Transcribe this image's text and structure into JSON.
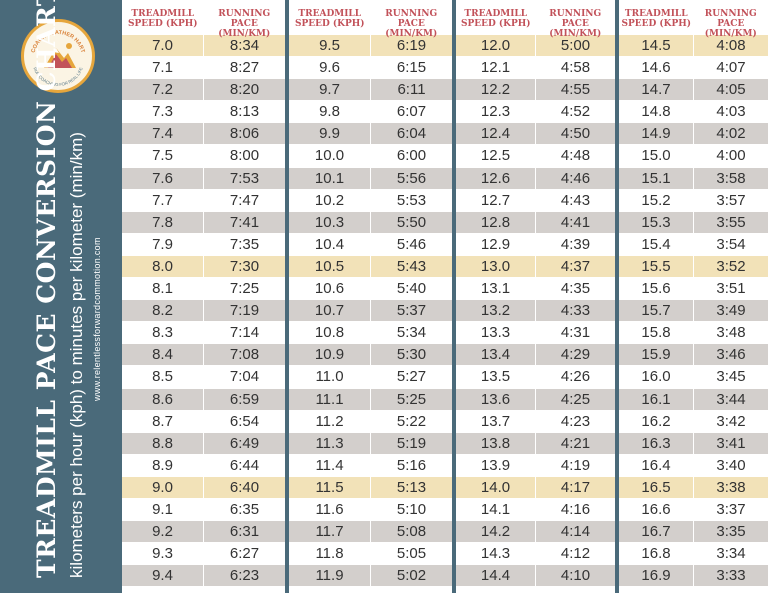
{
  "logo": {
    "top_text": "COACH HEATHER HART",
    "bottom_text": "RUN COACHING FOR REAL LIFE"
  },
  "title": "TREADMILL PACE CONVERSION CHART",
  "subtitle": "kilometers  per hour (kph) to minutes per kilometer  (min/km)",
  "url": "www.relentlessforwardcommotion.com",
  "headers": {
    "speed": [
      "TREADMILL",
      "SPEED (KPH)"
    ],
    "pace": [
      "RUNNING PACE",
      "(MIN/KM)"
    ]
  },
  "colors": {
    "sidebar": "#4a6a7a",
    "header_text": "#c2525a",
    "highlight": "#f2e2b8",
    "shaded": "#d3cfcc",
    "logo_ring": "#e6a63c"
  },
  "tables": [
    {
      "rows": [
        [
          "7.0",
          "8:34"
        ],
        [
          "7.1",
          "8:27"
        ],
        [
          "7.2",
          "8:20"
        ],
        [
          "7.3",
          "8:13"
        ],
        [
          "7.4",
          "8:06"
        ],
        [
          "7.5",
          "8:00"
        ],
        [
          "7.6",
          "7:53"
        ],
        [
          "7.7",
          "7:47"
        ],
        [
          "7.8",
          "7:41"
        ],
        [
          "7.9",
          "7:35"
        ],
        [
          "8.0",
          "7:30"
        ],
        [
          "8.1",
          "7:25"
        ],
        [
          "8.2",
          "7:19"
        ],
        [
          "8.3",
          "7:14"
        ],
        [
          "8.4",
          "7:08"
        ],
        [
          "8.5",
          "7:04"
        ],
        [
          "8.6",
          "6:59"
        ],
        [
          "8.7",
          "6:54"
        ],
        [
          "8.8",
          "6:49"
        ],
        [
          "8.9",
          "6:44"
        ],
        [
          "9.0",
          "6:40"
        ],
        [
          "9.1",
          "6:35"
        ],
        [
          "9.2",
          "6:31"
        ],
        [
          "9.3",
          "6:27"
        ],
        [
          "9.4",
          "6:23"
        ]
      ]
    },
    {
      "rows": [
        [
          "9.5",
          "6:19"
        ],
        [
          "9.6",
          "6:15"
        ],
        [
          "9.7",
          "6:11"
        ],
        [
          "9.8",
          "6:07"
        ],
        [
          "9.9",
          "6:04"
        ],
        [
          "10.0",
          "6:00"
        ],
        [
          "10.1",
          "5:56"
        ],
        [
          "10.2",
          "5:53"
        ],
        [
          "10.3",
          "5:50"
        ],
        [
          "10.4",
          "5:46"
        ],
        [
          "10.5",
          "5:43"
        ],
        [
          "10.6",
          "5:40"
        ],
        [
          "10.7",
          "5:37"
        ],
        [
          "10.8",
          "5:34"
        ],
        [
          "10.9",
          "5:30"
        ],
        [
          "11.0",
          "5:27"
        ],
        [
          "11.1",
          "5:25"
        ],
        [
          "11.2",
          "5:22"
        ],
        [
          "11.3",
          "5:19"
        ],
        [
          "11.4",
          "5:16"
        ],
        [
          "11.5",
          "5:13"
        ],
        [
          "11.6",
          "5:10"
        ],
        [
          "11.7",
          "5:08"
        ],
        [
          "11.8",
          "5:05"
        ],
        [
          "11.9",
          "5:02"
        ]
      ]
    },
    {
      "rows": [
        [
          "12.0",
          "5:00"
        ],
        [
          "12.1",
          "4:58"
        ],
        [
          "12.2",
          "4:55"
        ],
        [
          "12.3",
          "4:52"
        ],
        [
          "12.4",
          "4:50"
        ],
        [
          "12.5",
          "4:48"
        ],
        [
          "12.6",
          "4:46"
        ],
        [
          "12.7",
          "4:43"
        ],
        [
          "12.8",
          "4:41"
        ],
        [
          "12.9",
          "4:39"
        ],
        [
          "13.0",
          "4:37"
        ],
        [
          "13.1",
          "4:35"
        ],
        [
          "13.2",
          "4:33"
        ],
        [
          "13.3",
          "4:31"
        ],
        [
          "13.4",
          "4:29"
        ],
        [
          "13.5",
          "4:26"
        ],
        [
          "13.6",
          "4:25"
        ],
        [
          "13.7",
          "4:23"
        ],
        [
          "13.8",
          "4:21"
        ],
        [
          "13.9",
          "4:19"
        ],
        [
          "14.0",
          "4:17"
        ],
        [
          "14.1",
          "4:16"
        ],
        [
          "14.2",
          "4:14"
        ],
        [
          "14.3",
          "4:12"
        ],
        [
          "14.4",
          "4:10"
        ]
      ]
    },
    {
      "rows": [
        [
          "14.5",
          "4:08"
        ],
        [
          "14.6",
          "4:07"
        ],
        [
          "14.7",
          "4:05"
        ],
        [
          "14.8",
          "4:03"
        ],
        [
          "14.9",
          "4:02"
        ],
        [
          "15.0",
          "4:00"
        ],
        [
          "15.1",
          "3:58"
        ],
        [
          "15.2",
          "3:57"
        ],
        [
          "15.3",
          "3:55"
        ],
        [
          "15.4",
          "3:54"
        ],
        [
          "15.5",
          "3:52"
        ],
        [
          "15.6",
          "3:51"
        ],
        [
          "15.7",
          "3:49"
        ],
        [
          "15.8",
          "3:48"
        ],
        [
          "15.9",
          "3:46"
        ],
        [
          "16.0",
          "3:45"
        ],
        [
          "16.1",
          "3:44"
        ],
        [
          "16.2",
          "3:42"
        ],
        [
          "16.3",
          "3:41"
        ],
        [
          "16.4",
          "3:40"
        ],
        [
          "16.5",
          "3:38"
        ],
        [
          "16.6",
          "3:37"
        ],
        [
          "16.7",
          "3:35"
        ],
        [
          "16.8",
          "3:34"
        ],
        [
          "16.9",
          "3:33"
        ]
      ]
    }
  ]
}
